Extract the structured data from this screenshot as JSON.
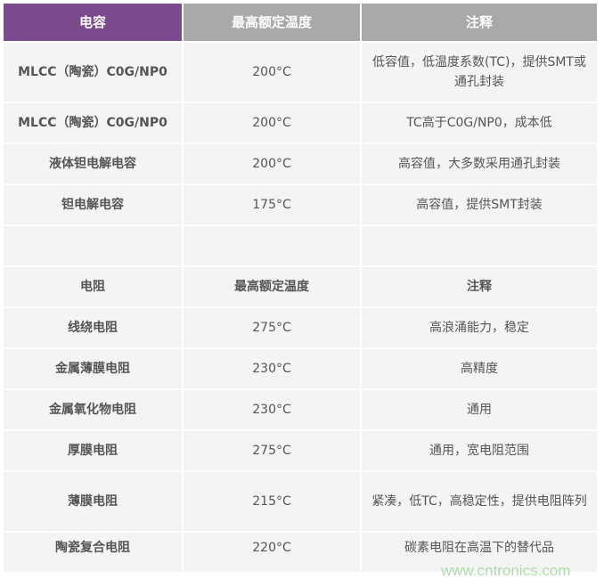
{
  "header": [
    "电容",
    "最高额定温度",
    "注释"
  ],
  "capacitors": [
    [
      "MLCC（陶瓷）C0G/NP0",
      "200°C",
      "低容值，低温度系数(TC)，提供SMT或通孔封装"
    ],
    [
      "MLCC（陶瓷）C0G/NP0",
      "200°C",
      "TC高于C0G/NP0，成本低"
    ],
    [
      "液体钽电解电容",
      "200°C",
      "高容值，大多数采用通孔封装"
    ],
    [
      "钽电解电容",
      "175°C",
      "高容值，提供SMT封装"
    ]
  ],
  "resistor_header": [
    "电阻",
    "最高额定温度",
    "注释"
  ],
  "resistors": [
    [
      "线绕电阻",
      "275°C",
      "高浪涌能力，稳定"
    ],
    [
      "金属薄膜电阻",
      "230°C",
      "高精度"
    ],
    [
      "金属氧化物电阻",
      "230°C",
      "通用"
    ],
    [
      "厚膜电阻",
      "275°C",
      "通用，宽电阻范围"
    ],
    [
      "薄膜电阻",
      "215°C",
      "紧凑，低TC，高稳定性，提供电阻阵列"
    ],
    [
      "陶瓷复合电阻",
      "220°C",
      "碳素电阻在高温下的替代品"
    ]
  ],
  "watermark": "www.cntronics.com",
  "colors": {
    "header_accent": "#7b4a8c",
    "header_gray": "#a9a9a9",
    "cell": "#f4f4f4"
  }
}
